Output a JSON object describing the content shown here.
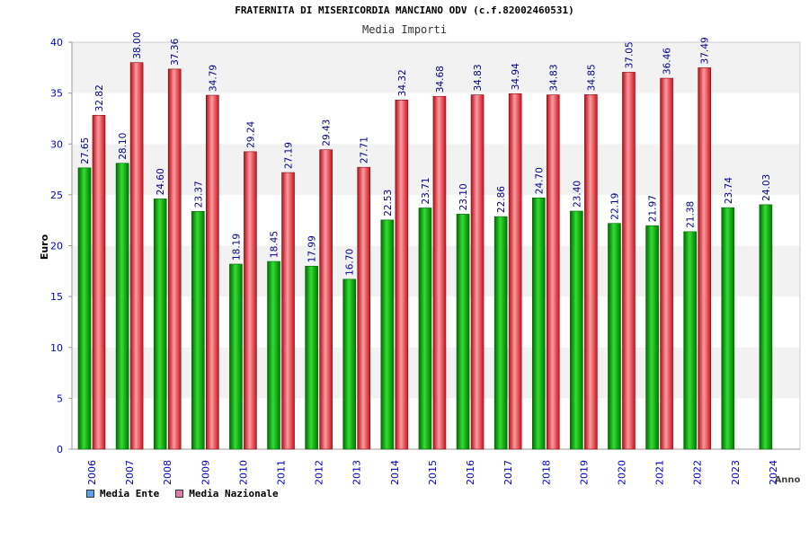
{
  "chart_data": {
    "type": "bar",
    "title": "FRATERNITA DI MISERICORDIA MANCIANO ODV (c.f.82002460531)",
    "subtitle": "Media Importi",
    "xlabel": "Anno",
    "ylabel": "Euro",
    "ylim": [
      0,
      40
    ],
    "yticks": [
      0,
      5,
      10,
      15,
      20,
      25,
      30,
      35,
      40
    ],
    "grid": true,
    "legend_position": "bottom-left",
    "categories": [
      "2006",
      "2007",
      "2008",
      "2009",
      "2010",
      "2011",
      "2012",
      "2013",
      "2014",
      "2015",
      "2016",
      "2017",
      "2018",
      "2019",
      "2020",
      "2021",
      "2022",
      "2023",
      "2024"
    ],
    "series": [
      {
        "name": "Media Ente",
        "color": "#00b000",
        "legend_color": "#5aa0e6",
        "values": [
          27.65,
          28.1,
          24.6,
          23.37,
          18.19,
          18.45,
          17.99,
          16.7,
          22.53,
          23.71,
          23.1,
          22.86,
          24.7,
          23.4,
          22.19,
          21.97,
          21.38,
          23.74,
          24.03
        ],
        "labels": [
          "27.65",
          "28.10",
          "24.60",
          "23.37",
          "18.19",
          "18.45",
          "17.99",
          "16.70",
          "22.53",
          "23.71",
          "23.10",
          "22.86",
          "24.70",
          "23.40",
          "22.19",
          "21.97",
          "21.38",
          "23.74",
          "24.03"
        ]
      },
      {
        "name": "Media Nazionale",
        "color": "#e0202a",
        "legend_color": "#e07aa8",
        "values": [
          32.82,
          38.0,
          37.36,
          34.79,
          29.24,
          27.19,
          29.43,
          27.71,
          34.32,
          34.68,
          34.83,
          34.94,
          34.83,
          34.85,
          37.05,
          36.46,
          37.49,
          null,
          null
        ],
        "labels": [
          "32.82",
          "38.00",
          "37.36",
          "34.79",
          "29.24",
          "27.19",
          "29.43",
          "27.71",
          "34.32",
          "34.68",
          "34.83",
          "34.94",
          "34.83",
          "34.85",
          "37.05",
          "36.46",
          "37.49",
          "",
          ""
        ]
      }
    ]
  }
}
